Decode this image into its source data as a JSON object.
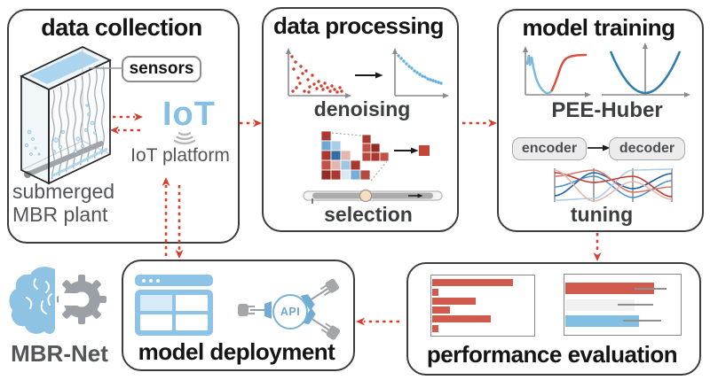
{
  "colors": {
    "arrow_red": "#d5402e",
    "bar_red": "#d05a4c",
    "light_blue": "#85bfe3",
    "curve_blue": "#2e7fab",
    "box_border": "#3d3d3d",
    "gray_text": "#54555a"
  },
  "data_collection": {
    "title": "data collection",
    "sensors_label": "sensors",
    "iot_logo": "IoT",
    "iot_platform_label": "IoT platform",
    "plant_line1": "submerged",
    "plant_line2": "MBR plant"
  },
  "data_processing": {
    "title": "data processing",
    "denoising_label": "denoising",
    "selection_label": "selection"
  },
  "model_training": {
    "title": "model training",
    "loss_label": "PEE-Huber",
    "encoder_label": "encoder",
    "decoder_label": "decoder",
    "tuning_label": "tuning"
  },
  "model_deployment": {
    "title": "model deployment",
    "api_label": "API"
  },
  "performance_evaluation": {
    "title": "performance evaluation"
  },
  "mbr_net": {
    "label": "MBR-Net"
  },
  "chart_data": [
    {
      "type": "bar",
      "orientation": "horizontal",
      "context": "performance evaluation - left metrics chart (bars only, no axis labels shown)",
      "values": [
        0.79,
        0.06,
        0.43,
        0.17,
        0.57,
        0.06
      ],
      "bar_color": "#d05a4c",
      "axis_labels_visible": false
    },
    {
      "type": "bar",
      "orientation": "horizontal",
      "context": "performance evaluation - right comparison chart with error bars (no axis labels shown)",
      "series": [
        {
          "value": 0.77,
          "color": "#d05a4c",
          "error_low": 0.6,
          "error_high": 0.88
        },
        {
          "value": 0.6,
          "color": "#f1f1f1",
          "error_low": 0.45,
          "error_high": 0.76
        },
        {
          "value": 0.64,
          "color": "#82bfe2",
          "error_low": 0.5,
          "error_high": 0.83
        }
      ],
      "axis_labels_visible": false
    }
  ]
}
